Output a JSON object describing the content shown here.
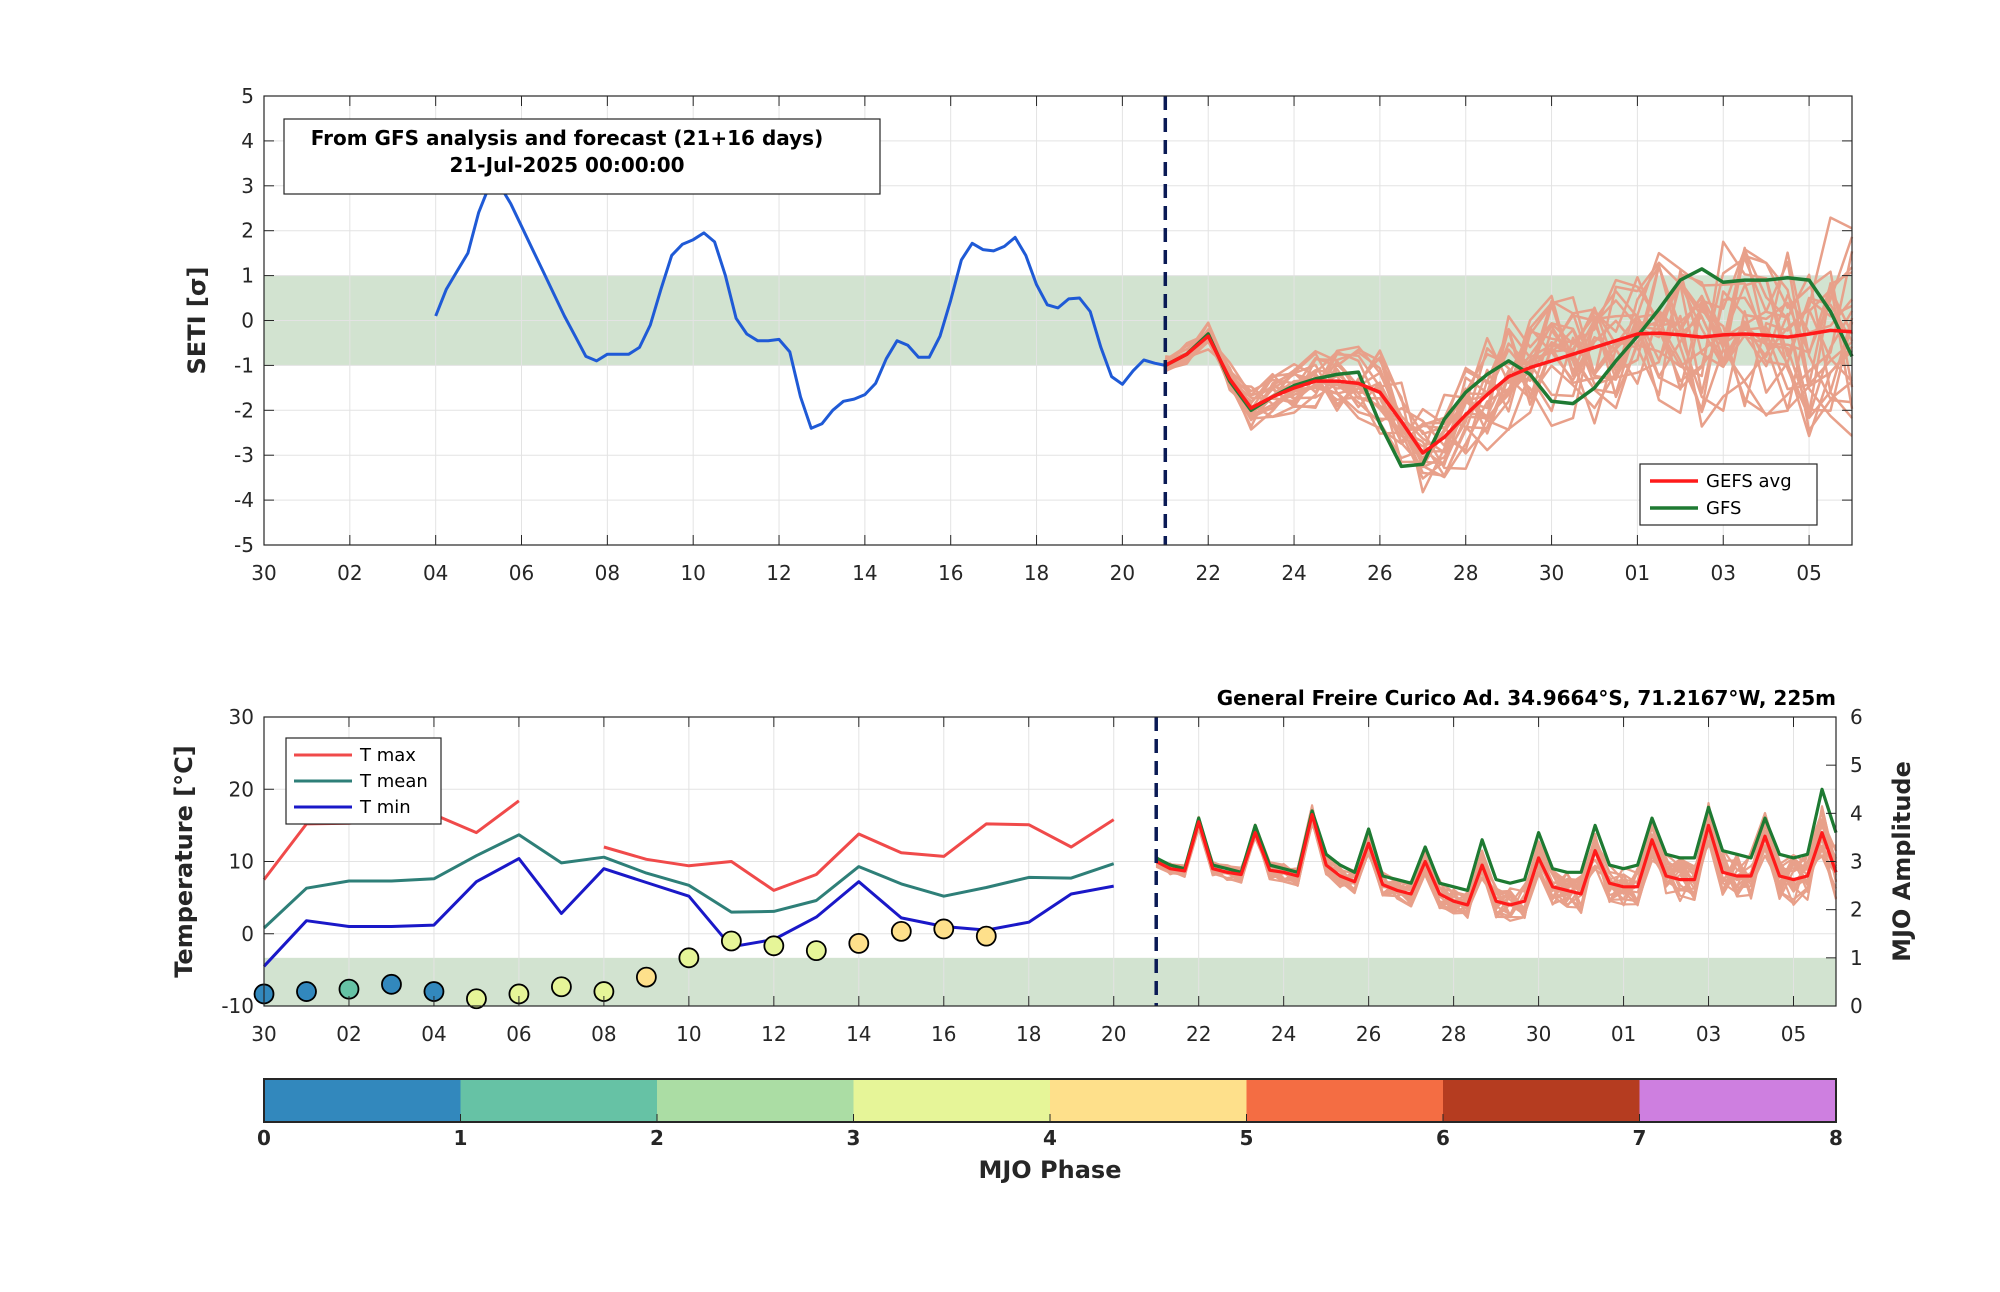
{
  "chart_data": [
    {
      "type": "line",
      "panel": "SETI",
      "ylabel": "SETI [σ]",
      "ylim": [
        -5,
        5
      ],
      "yticks": [
        5,
        4,
        3,
        2,
        1,
        0,
        -1,
        -2,
        -3,
        -4,
        -5
      ],
      "xlim_days": [
        0,
        37
      ],
      "xtick_labels": [
        "30",
        "02",
        "04",
        "06",
        "08",
        "10",
        "12",
        "14",
        "16",
        "18",
        "20",
        "22",
        "24",
        "26",
        "28",
        "30",
        "01",
        "03",
        "05"
      ],
      "grid": true,
      "normal_band": [
        -1,
        1
      ],
      "forecast_start_day": 21,
      "info_box": [
        "From GFS analysis and forecast (21+16 days)",
        "21-Jul-2025 00:00:00"
      ],
      "legend": {
        "placement": "bottom-right",
        "entries": [
          "GEFS avg",
          "GFS"
        ]
      },
      "colors": {
        "observed": "#1f5ad6",
        "gefs_avg": "#ff1a1a",
        "gfs": "#1e7a32",
        "members": "#e8a08a",
        "band": "#d2e3d0",
        "forecast_line": "#0a1a55"
      },
      "observed": {
        "x": [
          4,
          4.25,
          4.5,
          4.75,
          5,
          5.25,
          5.5,
          5.75,
          6,
          6.25,
          6.5,
          6.75,
          7,
          7.25,
          7.5,
          7.75,
          8,
          8.25,
          8.5,
          8.75,
          9,
          9.25,
          9.5,
          9.75,
          10,
          10.25,
          10.5,
          10.75,
          11,
          11.25,
          11.5,
          11.75,
          12,
          12.25,
          12.5,
          12.75,
          13,
          13.25,
          13.5,
          13.75,
          14,
          14.25,
          14.5,
          14.75,
          15,
          15.25,
          15.5,
          15.75,
          16,
          16.25,
          16.5,
          16.75,
          17,
          17.25,
          17.5,
          17.75,
          18,
          18.25,
          18.5,
          18.75,
          19,
          19.25,
          19.5,
          19.75,
          20,
          20.25,
          20.5,
          20.75,
          21
        ],
        "y": [
          0.1,
          0.7,
          1.1,
          1.5,
          2.4,
          3.0,
          3.0,
          2.6,
          2.1,
          1.6,
          1.1,
          0.6,
          0.1,
          -0.35,
          -0.8,
          -0.9,
          -0.75,
          -0.75,
          -0.75,
          -0.6,
          -0.1,
          0.7,
          1.45,
          1.7,
          1.8,
          1.95,
          1.75,
          1.0,
          0.05,
          -0.3,
          -0.45,
          -0.45,
          -0.42,
          -0.7,
          -1.7,
          -2.4,
          -2.3,
          -2.0,
          -1.8,
          -1.75,
          -1.65,
          -1.4,
          -0.85,
          -0.45,
          -0.55,
          -0.82,
          -0.82,
          -0.35,
          0.45,
          1.35,
          1.72,
          1.58,
          1.55,
          1.65,
          1.85,
          1.45,
          0.8,
          0.35,
          0.28,
          0.48,
          0.5,
          0.2,
          -0.6,
          -1.25,
          -1.42,
          -1.12,
          -0.88,
          -0.95,
          -1.0
        ]
      },
      "gefs_avg": {
        "x": [
          21,
          21.5,
          22,
          22.5,
          23,
          23.5,
          24,
          24.5,
          25,
          25.5,
          26,
          26.5,
          27,
          27.5,
          28,
          28.5,
          29,
          29.5,
          30,
          30.5,
          31,
          31.5,
          32,
          32.5,
          33,
          33.5,
          34,
          34.5,
          35,
          35.5,
          36,
          36.5,
          37
        ],
        "y": [
          -1.0,
          -0.75,
          -0.35,
          -1.3,
          -1.95,
          -1.7,
          -1.5,
          -1.35,
          -1.35,
          -1.4,
          -1.6,
          -2.25,
          -2.95,
          -2.6,
          -2.1,
          -1.65,
          -1.25,
          -1.05,
          -0.9,
          -0.75,
          -0.6,
          -0.45,
          -0.3,
          -0.28,
          -0.32,
          -0.37,
          -0.32,
          -0.3,
          -0.33,
          -0.37,
          -0.3,
          -0.22,
          -0.25
        ]
      },
      "gfs": {
        "x": [
          21,
          21.5,
          22,
          22.5,
          23,
          23.5,
          24,
          24.5,
          25,
          25.5,
          26,
          26.5,
          27,
          27.5,
          28,
          28.5,
          29,
          29.5,
          30,
          30.5,
          31,
          31.5,
          32,
          32.5,
          33,
          33.5,
          34,
          34.5,
          35,
          35.5,
          36,
          36.5,
          37
        ],
        "y": [
          -1.0,
          -0.75,
          -0.3,
          -1.35,
          -2.0,
          -1.7,
          -1.45,
          -1.3,
          -1.2,
          -1.15,
          -2.3,
          -3.25,
          -3.2,
          -2.2,
          -1.6,
          -1.2,
          -0.9,
          -1.2,
          -1.8,
          -1.85,
          -1.5,
          -0.9,
          -0.35,
          0.25,
          0.9,
          1.15,
          0.85,
          0.9,
          0.9,
          0.95,
          0.9,
          0.2,
          -0.8
        ]
      }
    },
    {
      "type": "line",
      "panel": "Temperature",
      "title": "General Freire Curico Ad. 34.9664°S, 71.2167°W, 225m",
      "ylabel": "Temperature [°C]",
      "ylabel_right": "MJO Amplitude",
      "ylim": [
        -10,
        30
      ],
      "ylim_right": [
        0,
        6
      ],
      "yticks": [
        30,
        20,
        10,
        0,
        -10
      ],
      "yticks_right": [
        6,
        5,
        4,
        3,
        2,
        1,
        0
      ],
      "xlim_days": [
        0,
        37
      ],
      "xtick_labels": [
        "30",
        "02",
        "04",
        "06",
        "08",
        "10",
        "12",
        "14",
        "16",
        "18",
        "20",
        "22",
        "24",
        "26",
        "28",
        "30",
        "01",
        "03",
        "05"
      ],
      "grid": true,
      "mjo_band_amplitude": [
        0,
        1
      ],
      "forecast_start_day": 21,
      "legend": {
        "placement": "top-left",
        "entries": [
          "T max",
          "T mean",
          "T min"
        ]
      },
      "colors": {
        "tmax": "#f04a4a",
        "tmean": "#2e7f78",
        "tmin": "#1a18c8",
        "gefs_avg": "#ff1a1a",
        "gfs": "#1e7a32",
        "members": "#e8a08a",
        "band": "#d2e3d0",
        "forecast_line": "#0a1a55"
      },
      "tmax": {
        "segments": [
          {
            "x": [
              0,
              1,
              2,
              3,
              4,
              5,
              6
            ],
            "y": [
              7.5,
              15.2,
              15.3,
              15.8,
              16.5,
              14,
              18.4
            ]
          },
          {
            "x": [
              8,
              9,
              10,
              11,
              12,
              13,
              14,
              15,
              16,
              17,
              18,
              19,
              20
            ],
            "y": [
              12,
              10.3,
              9.4,
              10,
              6,
              8.2,
              13.8,
              11.2,
              10.7,
              15.2,
              15.1,
              12,
              15.8
            ]
          }
        ]
      },
      "tmean": {
        "x": [
          0,
          1,
          2,
          3,
          4,
          5,
          6,
          7,
          8,
          9,
          10,
          11,
          12,
          13,
          14,
          15,
          16,
          17,
          18,
          19,
          20
        ],
        "y": [
          0.8,
          6.3,
          7.3,
          7.3,
          7.6,
          10.8,
          13.7,
          9.8,
          10.6,
          8.4,
          6.7,
          3,
          3.1,
          4.6,
          9.3,
          6.9,
          5.2,
          6.4,
          7.8,
          7.7,
          9.7
        ]
      },
      "tmin": {
        "x": [
          0,
          1,
          2,
          3,
          4,
          5,
          6,
          7,
          8,
          9,
          10,
          11,
          12,
          13,
          14,
          15,
          16,
          17,
          18,
          19,
          20
        ],
        "y": [
          -4.5,
          1.8,
          1,
          1,
          1.2,
          7.2,
          10.4,
          2.8,
          9,
          7.1,
          5.2,
          -1.8,
          -0.8,
          2.3,
          7.2,
          2.2,
          1,
          0.5,
          1.6,
          5.5,
          6.6
        ]
      },
      "forecast": {
        "x": [
          21,
          21.33,
          21.67,
          22,
          22.33,
          22.67,
          23,
          23.33,
          23.67,
          24,
          24.33,
          24.67,
          25,
          25.33,
          25.67,
          26,
          26.33,
          26.67,
          27,
          27.33,
          27.67,
          28,
          28.33,
          28.67,
          29,
          29.33,
          29.67,
          30,
          30.33,
          30.67,
          31,
          31.33,
          31.67,
          32,
          32.33,
          32.67,
          33,
          33.33,
          33.67,
          34,
          34.33,
          34.67,
          35,
          35.33,
          35.67,
          36,
          36.33,
          36.67,
          37
        ],
        "gefs_avg": [
          10,
          9,
          8.7,
          15.5,
          9,
          8.5,
          8.2,
          14,
          8.8,
          8.5,
          8,
          16.5,
          9.5,
          8,
          7.2,
          12.5,
          6.8,
          6,
          5.5,
          10,
          5.5,
          4.5,
          4,
          9.5,
          4.5,
          4,
          4.5,
          10.5,
          6.5,
          6,
          5.5,
          11.5,
          7,
          6.5,
          6.5,
          13,
          8,
          7.5,
          7.5,
          15,
          8.5,
          8,
          8,
          13.5,
          8,
          7.5,
          8,
          14,
          8.5
        ],
        "gfs": [
          10.5,
          9.5,
          9,
          16,
          9.5,
          9,
          8.5,
          15,
          9.5,
          9,
          8.5,
          17,
          11,
          9.5,
          8.5,
          14.5,
          8,
          7.5,
          7,
          12,
          7,
          6.5,
          6,
          13,
          7.5,
          7,
          7.5,
          14,
          9,
          8.5,
          8.5,
          15,
          9.5,
          9,
          9.5,
          16,
          11,
          10.5,
          10.5,
          17.5,
          11.5,
          11,
          10.5,
          16,
          11,
          10.5,
          11,
          20,
          14
        ]
      },
      "mjo": {
        "days": [
          0,
          1,
          2,
          3,
          4,
          5,
          6,
          7,
          8,
          9,
          10,
          11,
          12,
          13,
          14,
          15,
          16,
          17
        ],
        "amplitude": [
          0.25,
          0.3,
          0.35,
          0.45,
          0.3,
          0.15,
          0.25,
          0.4,
          0.3,
          0.6,
          1.0,
          1.35,
          1.25,
          1.15,
          1.3,
          1.55,
          1.6,
          1.45
        ],
        "phase": [
          0.5,
          0.5,
          1.5,
          0.5,
          0.5,
          3.5,
          3.5,
          3.5,
          3.5,
          4.5,
          3.5,
          3.5,
          3.5,
          3.5,
          4.5,
          4.5,
          4.5,
          4.5
        ]
      }
    },
    {
      "type": "colorbar",
      "xlabel": "MJO Phase",
      "tick_labels": [
        "0",
        "1",
        "2",
        "3",
        "4",
        "5",
        "6",
        "7",
        "8"
      ],
      "colors": [
        "#3288bd",
        "#66c2a5",
        "#abdda4",
        "#e6f598",
        "#fee08b",
        "#f46d43",
        "#b53c20",
        "#ce7fe0"
      ]
    }
  ]
}
